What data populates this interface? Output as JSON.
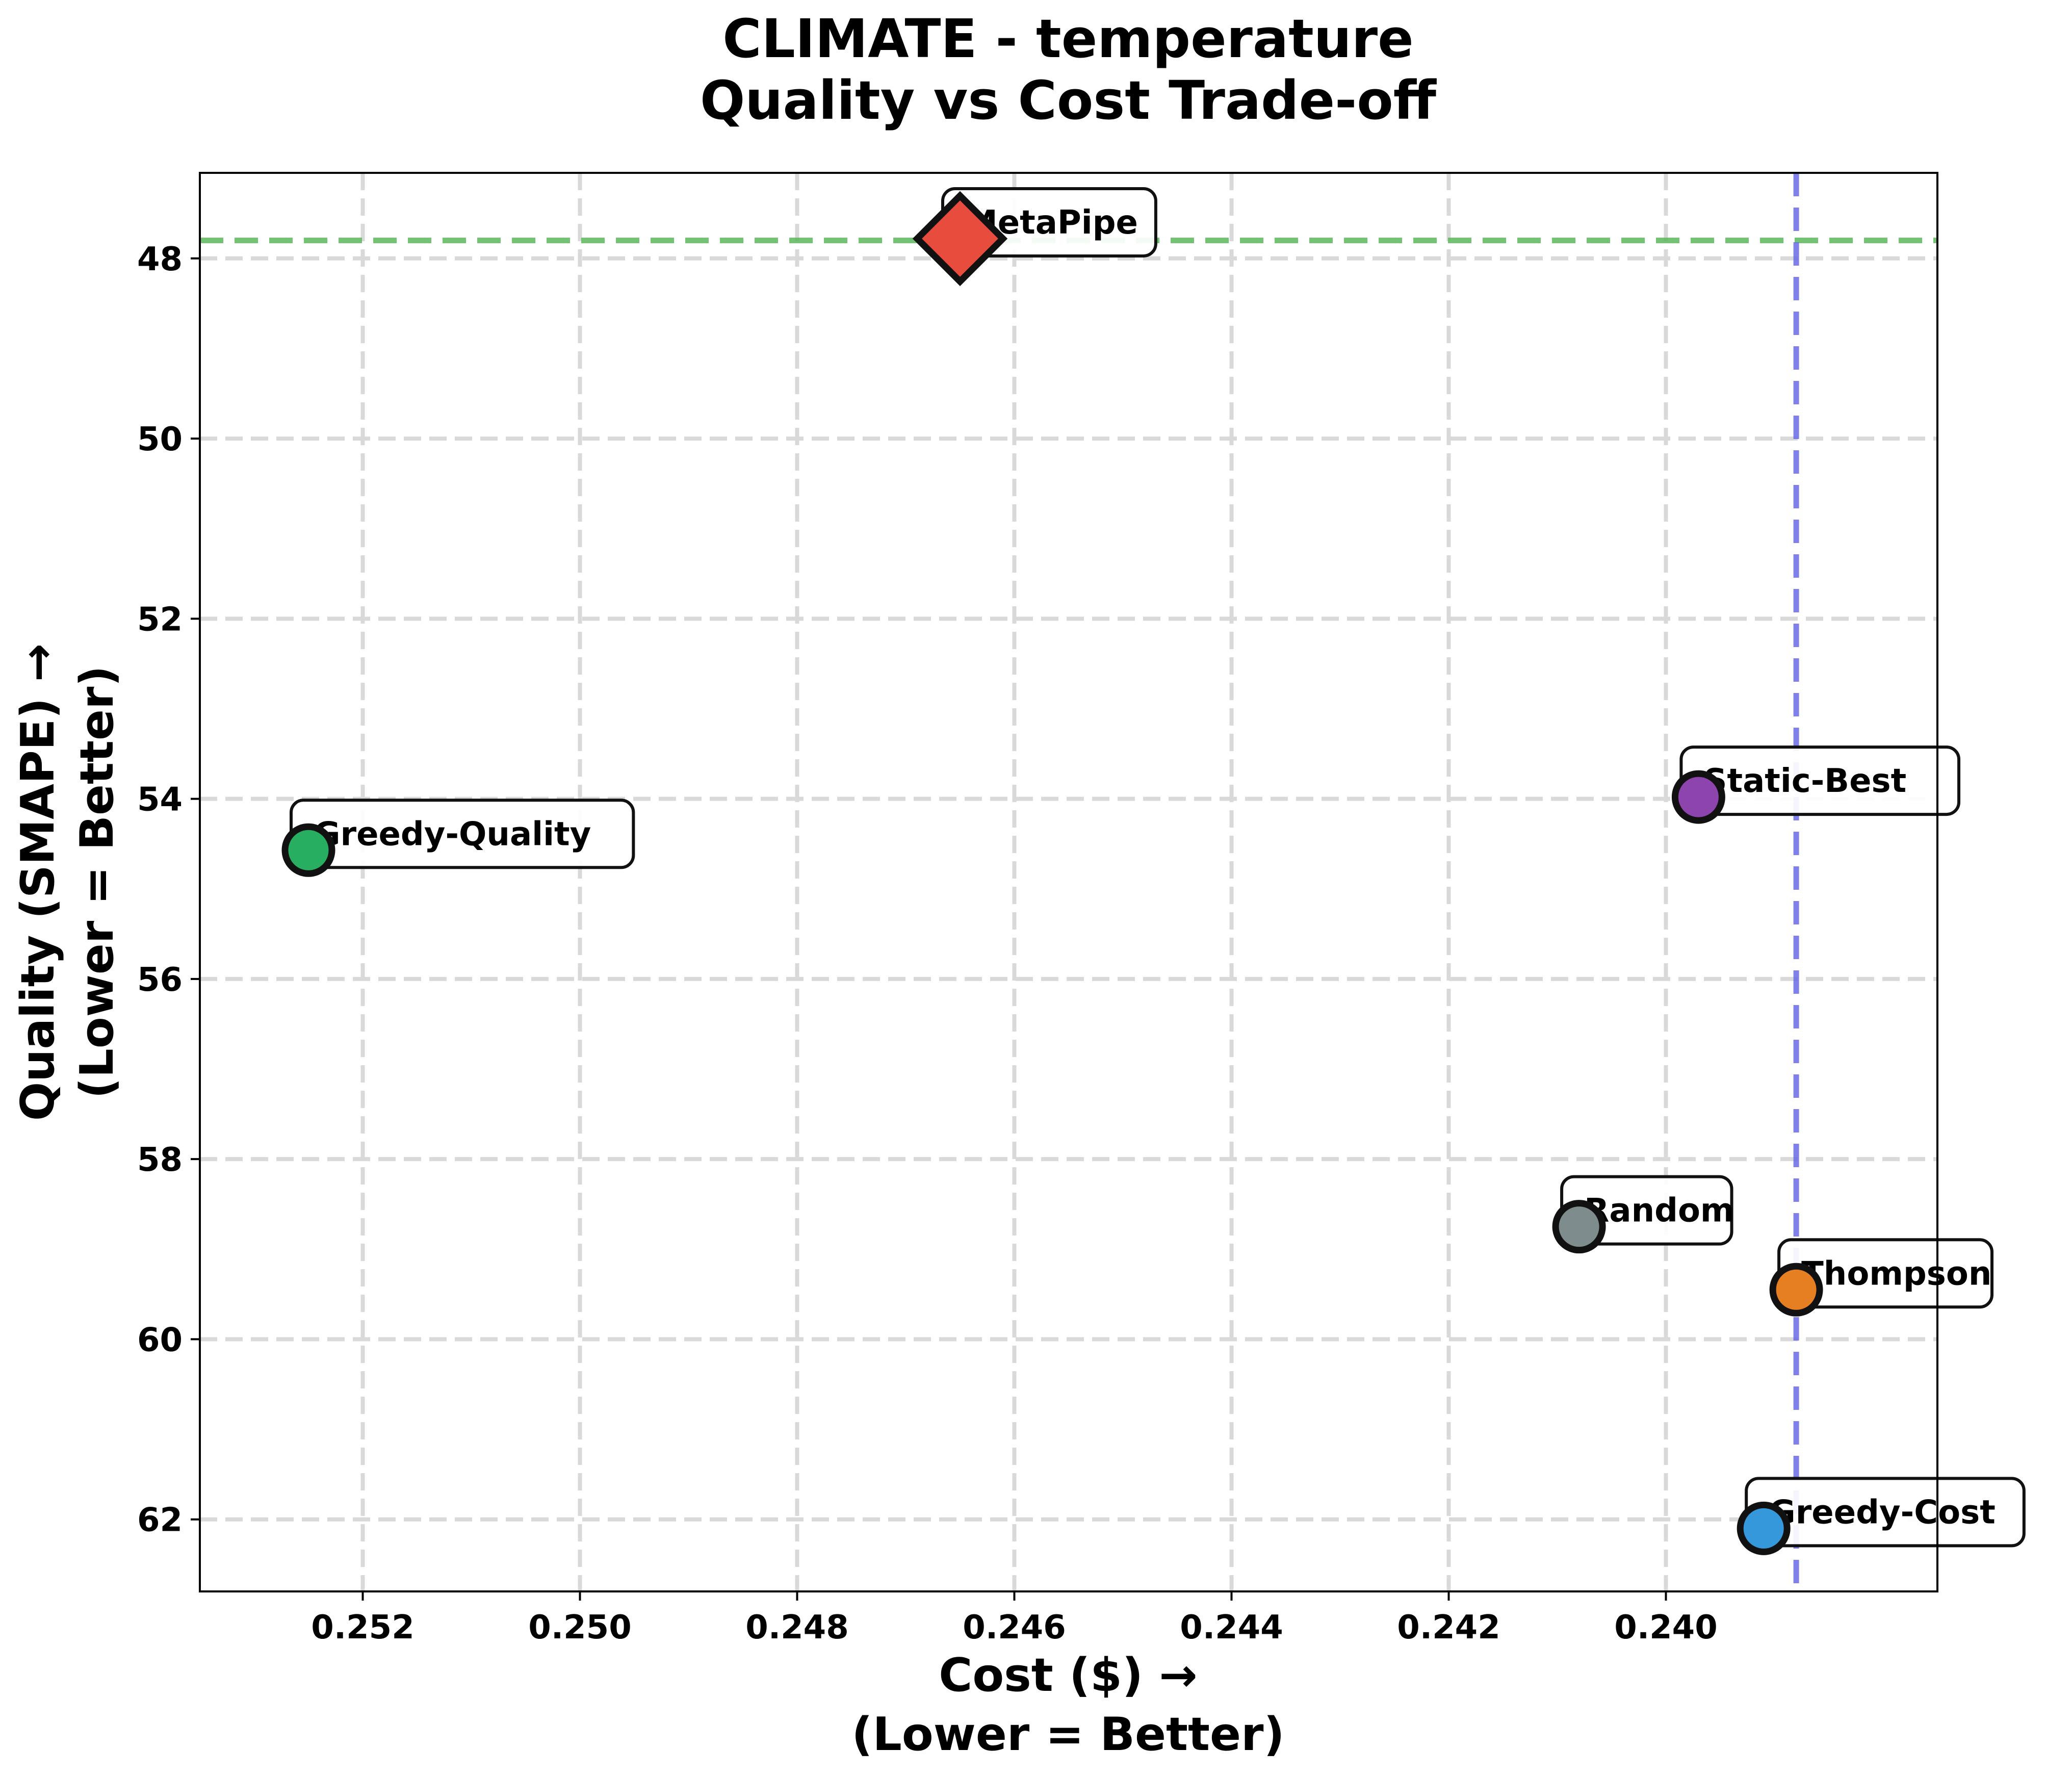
{
  "chart_data": {
    "type": "scatter",
    "title": [
      "CLIMATE - temperature",
      "Quality vs Cost Trade-off"
    ],
    "xlabel": [
      "Cost ($) →",
      "(Lower = Better)"
    ],
    "ylabel": [
      "Quality (SMAPE) →",
      "(Lower = Better)"
    ],
    "x_inverted": true,
    "y_inverted": true,
    "xlim": [
      0.2535,
      0.2375
    ],
    "ylim": [
      47.05,
      62.8
    ],
    "xticks": [
      0.252,
      0.25,
      0.248,
      0.246,
      0.244,
      0.242,
      0.24
    ],
    "xtick_labels": [
      "0.252",
      "0.250",
      "0.248",
      "0.246",
      "0.244",
      "0.242",
      "0.240"
    ],
    "yticks": [
      48,
      50,
      52,
      54,
      56,
      58,
      60,
      62
    ],
    "ytick_labels": [
      "48",
      "50",
      "52",
      "54",
      "56",
      "58",
      "60",
      "62"
    ],
    "grid": true,
    "reference_lines": {
      "best_quality_y": 47.8,
      "best_quality_color": "#5cb85c",
      "best_cost_x": 0.2388,
      "best_cost_color": "#6a6ae8"
    },
    "points": [
      {
        "name": "MetaPipe",
        "x": 0.2465,
        "y": 47.78,
        "marker": "diamond",
        "color": "#e74c3c"
      },
      {
        "name": "Static-Best",
        "x": 0.2397,
        "y": 53.98,
        "marker": "circle",
        "color": "#8e44ad"
      },
      {
        "name": "Greedy-Quality",
        "x": 0.2525,
        "y": 54.57,
        "marker": "circle",
        "color": "#27ae60"
      },
      {
        "name": "Random",
        "x": 0.2408,
        "y": 58.75,
        "marker": "circle",
        "color": "#7f8c8d"
      },
      {
        "name": "Thompson",
        "x": 0.2388,
        "y": 59.45,
        "marker": "circle",
        "color": "#e67e22"
      },
      {
        "name": "Greedy-Cost",
        "x": 0.2391,
        "y": 62.1,
        "marker": "circle",
        "color": "#3498db"
      }
    ]
  }
}
